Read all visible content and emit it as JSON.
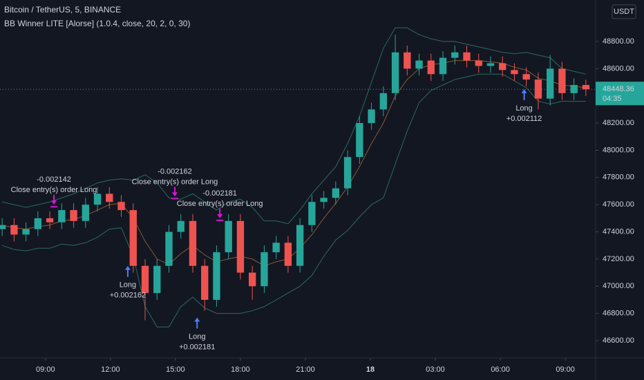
{
  "chart_data": {
    "type": "candlestick",
    "title": "Bitcoin / TetherUS, 5, BINANCE",
    "subtitle": "BB Winner LITE [Alorse] (1.0.4, close, 20, 2, 0, 30)",
    "currency": "USDT",
    "countdown": "04:35",
    "up_color": "#26a69a",
    "down_color": "#ef5350",
    "band_color": "#2b6b63",
    "basis_color": "#8a5a30",
    "signal_entry_color": "#4f7cff",
    "signal_exit_color": "#d516d5",
    "grid": false,
    "xlim": [
      6.9,
      34.4
    ],
    "ylim": [
      46473,
      49105
    ],
    "xticks": [
      {
        "value": 9,
        "label": "09:00"
      },
      {
        "value": 12,
        "label": "12:00"
      },
      {
        "value": 15,
        "label": "15:00"
      },
      {
        "value": 18,
        "label": "18:00"
      },
      {
        "value": 21,
        "label": "21:00"
      },
      {
        "value": 24,
        "label": "18"
      },
      {
        "value": 27,
        "label": "03:00"
      },
      {
        "value": 30,
        "label": "06:00"
      },
      {
        "value": 33,
        "label": "09:00"
      }
    ],
    "yticks": [
      {
        "value": 46600,
        "label": "46600.00"
      },
      {
        "value": 46800,
        "label": "46800.00"
      },
      {
        "value": 47000,
        "label": "47000.00"
      },
      {
        "value": 47200,
        "label": "47200.00"
      },
      {
        "value": 47400,
        "label": "47400.00"
      },
      {
        "value": 47600,
        "label": "47600.00"
      },
      {
        "value": 47800,
        "label": "47800.00"
      },
      {
        "value": 48000,
        "label": "48000.00"
      },
      {
        "value": 48200,
        "label": "48200.00"
      },
      {
        "value": 48400,
        "label": "48400.00"
      },
      {
        "value": 48600,
        "label": "48600.00"
      },
      {
        "value": 48800,
        "label": "48800.00"
      }
    ],
    "candles": {
      "x": [
        7.0,
        7.55,
        8.1,
        8.65,
        9.2,
        9.75,
        10.3,
        10.85,
        11.4,
        11.95,
        12.5,
        13.05,
        13.6,
        14.15,
        14.7,
        15.25,
        15.8,
        16.35,
        16.9,
        17.45,
        18.0,
        18.55,
        19.1,
        19.65,
        20.2,
        20.75,
        21.3,
        21.85,
        22.4,
        22.95,
        23.5,
        24.05,
        24.6,
        25.15,
        25.7,
        26.25,
        26.8,
        27.35,
        27.9,
        28.45,
        29.0,
        29.55,
        30.1,
        30.65,
        31.2,
        31.75,
        32.3,
        32.85,
        33.4,
        33.95
      ],
      "open": [
        47420,
        47450,
        47380,
        47420,
        47500,
        47470,
        47560,
        47480,
        47600,
        47680,
        47620,
        47560,
        47150,
        46950,
        47150,
        47400,
        47480,
        47150,
        46900,
        47250,
        47480,
        47100,
        47000,
        47250,
        47320,
        47150,
        47450,
        47620,
        47650,
        47720,
        47950,
        48200,
        48300,
        48420,
        48720,
        48600,
        48660,
        48560,
        48680,
        48720,
        48660,
        48620,
        48640,
        48590,
        48560,
        48520,
        48380,
        48600,
        48420,
        48480
      ],
      "high": [
        47500,
        47500,
        47470,
        47550,
        47550,
        47610,
        47610,
        47650,
        47730,
        47730,
        47670,
        47610,
        47200,
        47200,
        47450,
        47530,
        47530,
        47200,
        47300,
        47530,
        47530,
        47150,
        47300,
        47370,
        47370,
        47500,
        47670,
        47700,
        47770,
        48000,
        48250,
        48350,
        48470,
        48850,
        48770,
        48710,
        48710,
        48730,
        48770,
        48770,
        48710,
        48690,
        48690,
        48640,
        48610,
        48570,
        48700,
        48650,
        48530,
        48520
      ],
      "low": [
        47370,
        47330,
        47330,
        47370,
        47420,
        47420,
        47430,
        47430,
        47550,
        47570,
        47510,
        47100,
        46750,
        46900,
        47100,
        47350,
        47100,
        46820,
        46850,
        47200,
        47050,
        46900,
        46950,
        47200,
        47100,
        47100,
        47400,
        47570,
        47600,
        47670,
        47900,
        48150,
        48250,
        48370,
        48550,
        48550,
        48510,
        48510,
        48630,
        48610,
        48570,
        48570,
        48540,
        48510,
        48470,
        48300,
        48330,
        48370,
        48370,
        48400
      ],
      "close": [
        47450,
        47380,
        47420,
        47500,
        47470,
        47560,
        47480,
        47600,
        47680,
        47620,
        47560,
        47150,
        46950,
        47150,
        47400,
        47480,
        47150,
        46900,
        47250,
        47480,
        47100,
        47000,
        47250,
        47320,
        47150,
        47450,
        47620,
        47650,
        47720,
        47950,
        48200,
        48300,
        48420,
        48720,
        48600,
        48660,
        48560,
        48680,
        48720,
        48660,
        48620,
        48640,
        48590,
        48560,
        48520,
        48380,
        48600,
        48420,
        48480,
        48448.36
      ]
    },
    "bands": {
      "upper": [
        47620,
        47600,
        47580,
        47600,
        47620,
        47650,
        47680,
        47720,
        47760,
        47780,
        47790,
        47780,
        47820,
        47760,
        47650,
        47640,
        47680,
        47620,
        47560,
        47620,
        47640,
        47580,
        47480,
        47480,
        47460,
        47560,
        47680,
        47780,
        47880,
        48050,
        48250,
        48500,
        48750,
        48900,
        48900,
        48850,
        48820,
        48800,
        48800,
        48780,
        48760,
        48740,
        48720,
        48710,
        48720,
        48700,
        48680,
        48600,
        48580,
        48560
      ],
      "basis": [
        47450,
        47430,
        47420,
        47440,
        47450,
        47480,
        47490,
        47520,
        47560,
        47600,
        47610,
        47500,
        47330,
        47200,
        47160,
        47240,
        47300,
        47230,
        47180,
        47200,
        47220,
        47200,
        47150,
        47180,
        47200,
        47280,
        47380,
        47500,
        47610,
        47730,
        47880,
        48050,
        48200,
        48400,
        48520,
        48600,
        48630,
        48640,
        48660,
        48660,
        48660,
        48650,
        48640,
        48610,
        48590,
        48530,
        48510,
        48480,
        48470,
        48460
      ],
      "lower": [
        47300,
        47270,
        47260,
        47280,
        47280,
        47310,
        47300,
        47320,
        47360,
        47420,
        47430,
        47220,
        46850,
        46700,
        46700,
        46850,
        46920,
        46840,
        46800,
        46800,
        46800,
        46820,
        46850,
        46900,
        46950,
        47000,
        47080,
        47220,
        47340,
        47410,
        47510,
        47600,
        47650,
        47900,
        48140,
        48350,
        48440,
        48480,
        48520,
        48540,
        48560,
        48560,
        48560,
        48510,
        48460,
        48360,
        48340,
        48360,
        48360,
        48360
      ]
    },
    "signals": [
      {
        "kind": "exit",
        "x": 9.39,
        "y": 47600,
        "lines": [
          "-0.002142",
          "Close entry(s) order Long"
        ]
      },
      {
        "kind": "entry",
        "x": 12.8,
        "y": 47150,
        "lines": [
          "Long",
          "+0.002162"
        ]
      },
      {
        "kind": "exit",
        "x": 14.97,
        "y": 47660,
        "lines": [
          "-0.002162",
          "Close entry(s) order Long"
        ]
      },
      {
        "kind": "entry",
        "x": 16.0,
        "y": 46770,
        "lines": [
          "Long",
          "+0.002181"
        ]
      },
      {
        "kind": "exit",
        "x": 17.05,
        "y": 47500,
        "lines": [
          "-0.002181",
          "Close entry(s) order Long"
        ]
      },
      {
        "kind": "entry",
        "x": 31.1,
        "y": 48450,
        "lines": [
          "Long",
          "+0.002112"
        ]
      }
    ]
  }
}
